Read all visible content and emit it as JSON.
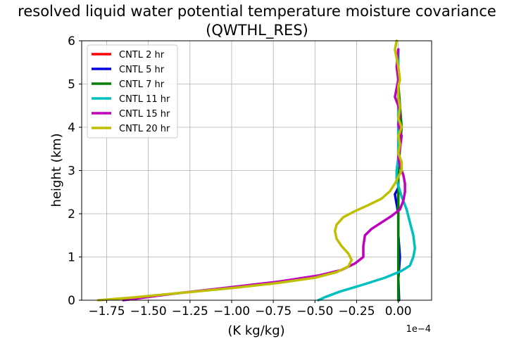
{
  "chart_data": {
    "type": "line",
    "title_line1": "resolved liquid water potential temperature moisture covariance",
    "title_line2": "(QWTHL_RES)",
    "xlabel": "(K kg/kg)",
    "ylabel": "height (km)",
    "x_offset_label": "1e−4",
    "xlim": [
      -1.9,
      0.2
    ],
    "ylim": [
      0,
      6
    ],
    "xticks": [
      -1.75,
      -1.5,
      -1.25,
      -1.0,
      -0.75,
      -0.5,
      -0.25,
      0.0
    ],
    "xtick_labels": [
      "−1.75",
      "−1.50",
      "−1.25",
      "−1.00",
      "−0.75",
      "−0.50",
      "−0.25",
      "0.00"
    ],
    "yticks": [
      0,
      1,
      2,
      3,
      4,
      5,
      6
    ],
    "ytick_labels": [
      "0",
      "1",
      "2",
      "3",
      "4",
      "5",
      "6"
    ],
    "grid": true,
    "legend_position": "top-left",
    "series": [
      {
        "name": "CNTL 2 hr",
        "color": "#ff0000",
        "points": [
          [
            0.0,
            0
          ],
          [
            0.0,
            0.5
          ],
          [
            0.005,
            1
          ],
          [
            0.0,
            1.5
          ],
          [
            0.0,
            2
          ],
          [
            0.0,
            2.5
          ],
          [
            0.0,
            3
          ],
          [
            0.0,
            4
          ],
          [
            0.0,
            5
          ],
          [
            0.0,
            5.8
          ]
        ]
      },
      {
        "name": "CNTL 5 hr",
        "color": "#0000dd",
        "points": [
          [
            0.005,
            0
          ],
          [
            0.0,
            0.5
          ],
          [
            0.01,
            1
          ],
          [
            0.0,
            1.5
          ],
          [
            0.0,
            2
          ],
          [
            -0.02,
            2.45
          ],
          [
            0.0,
            2.6
          ],
          [
            0.0,
            3
          ],
          [
            0.0,
            4
          ],
          [
            0.0,
            5
          ],
          [
            0.0,
            5.8
          ]
        ]
      },
      {
        "name": "CNTL 7 hr",
        "color": "#008000",
        "points": [
          [
            0.0,
            0
          ],
          [
            0.0,
            0.5
          ],
          [
            0.0,
            1
          ],
          [
            0.0,
            1.5
          ],
          [
            0.0,
            2
          ],
          [
            0.0,
            2.5
          ],
          [
            0.0,
            3
          ],
          [
            0.01,
            3.5
          ],
          [
            0.02,
            4
          ],
          [
            0.01,
            4.5
          ],
          [
            0.0,
            5
          ],
          [
            0.0,
            5.8
          ]
        ]
      },
      {
        "name": "CNTL 11 hr",
        "color": "#00bfbf",
        "points": [
          [
            -0.48,
            0
          ],
          [
            -0.44,
            0.07
          ],
          [
            -0.35,
            0.2
          ],
          [
            -0.22,
            0.35
          ],
          [
            -0.08,
            0.52
          ],
          [
            0.02,
            0.68
          ],
          [
            0.07,
            0.8
          ],
          [
            0.09,
            1.0
          ],
          [
            0.1,
            1.2
          ],
          [
            0.09,
            1.5
          ],
          [
            0.07,
            1.8
          ],
          [
            0.05,
            2.1
          ],
          [
            0.02,
            2.4
          ],
          [
            0.0,
            2.65
          ],
          [
            -0.01,
            2.8
          ],
          [
            -0.01,
            3.0
          ],
          [
            0.0,
            3.3
          ],
          [
            0.0,
            4
          ],
          [
            0.0,
            5
          ],
          [
            0.0,
            5.8
          ]
        ]
      },
      {
        "name": "CNTL 15 hr",
        "color": "#bf00bf",
        "points": [
          [
            -1.65,
            0
          ],
          [
            -1.35,
            0.15
          ],
          [
            -1.05,
            0.28
          ],
          [
            -0.72,
            0.43
          ],
          [
            -0.48,
            0.57
          ],
          [
            -0.34,
            0.7
          ],
          [
            -0.26,
            0.85
          ],
          [
            -0.21,
            1.0
          ],
          [
            -0.21,
            1.25
          ],
          [
            -0.2,
            1.5
          ],
          [
            -0.16,
            1.65
          ],
          [
            -0.1,
            1.8
          ],
          [
            -0.04,
            1.95
          ],
          [
            0.01,
            2.1
          ],
          [
            0.03,
            2.3
          ],
          [
            0.04,
            2.5
          ],
          [
            0.04,
            2.7
          ],
          [
            0.03,
            2.9
          ],
          [
            0.01,
            3.1
          ],
          [
            0.0,
            3.3
          ],
          [
            0.01,
            3.5
          ],
          [
            0.02,
            3.8
          ],
          [
            0.0,
            4.05
          ],
          [
            0.01,
            4.3
          ],
          [
            0.0,
            4.5
          ],
          [
            -0.02,
            4.7
          ],
          [
            -0.01,
            4.9
          ],
          [
            0.0,
            5.1
          ],
          [
            -0.01,
            5.4
          ],
          [
            0.0,
            5.8
          ]
        ]
      },
      {
        "name": "CNTL 20 hr",
        "color": "#bfbf00",
        "points": [
          [
            -1.8,
            0
          ],
          [
            -1.6,
            0.06
          ],
          [
            -1.3,
            0.17
          ],
          [
            -1.0,
            0.28
          ],
          [
            -0.72,
            0.4
          ],
          [
            -0.5,
            0.52
          ],
          [
            -0.37,
            0.65
          ],
          [
            -0.3,
            0.78
          ],
          [
            -0.28,
            0.93
          ],
          [
            -0.3,
            1.08
          ],
          [
            -0.34,
            1.25
          ],
          [
            -0.37,
            1.42
          ],
          [
            -0.38,
            1.6
          ],
          [
            -0.37,
            1.75
          ],
          [
            -0.33,
            1.92
          ],
          [
            -0.26,
            2.06
          ],
          [
            -0.18,
            2.2
          ],
          [
            -0.1,
            2.35
          ],
          [
            -0.05,
            2.52
          ],
          [
            -0.02,
            2.7
          ],
          [
            0.0,
            2.85
          ],
          [
            0.02,
            3.0
          ],
          [
            0.02,
            3.2
          ],
          [
            0.0,
            3.4
          ],
          [
            0.01,
            3.6
          ],
          [
            0.0,
            3.8
          ],
          [
            0.02,
            4.0
          ],
          [
            0.0,
            4.2
          ],
          [
            0.01,
            4.45
          ],
          [
            0.0,
            4.7
          ],
          [
            0.0,
            4.95
          ],
          [
            0.01,
            5.1
          ],
          [
            0.0,
            5.4
          ],
          [
            -0.01,
            5.6
          ],
          [
            -0.02,
            5.8
          ],
          [
            -0.01,
            6.0
          ]
        ]
      }
    ]
  }
}
